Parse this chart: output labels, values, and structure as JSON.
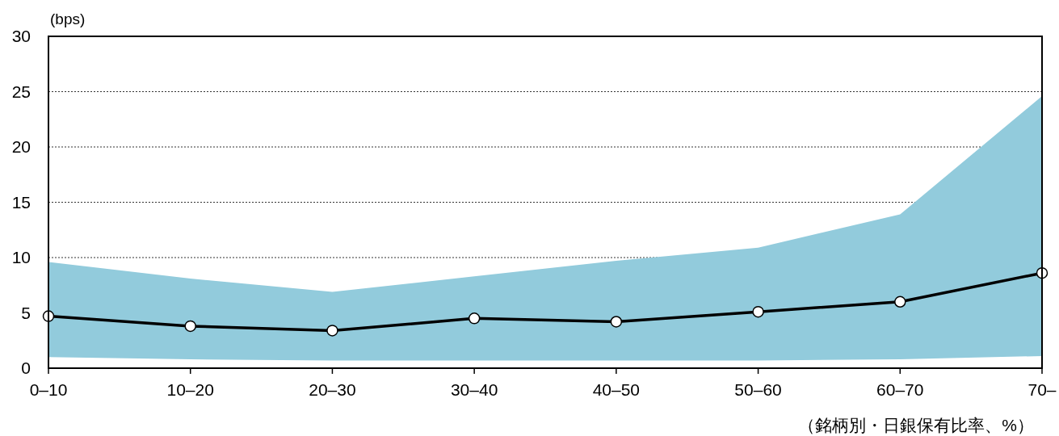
{
  "chart_data": {
    "type": "line",
    "ylabel": "(bps)",
    "xlabel": "（銘柄別・日銀保有比率、%）",
    "categories": [
      "0–10",
      "10–20",
      "20–30",
      "30–40",
      "40–50",
      "50–60",
      "60–70",
      "70–"
    ],
    "series": [
      {
        "color": "#000000",
        "values": [
          4.7,
          3.8,
          3.4,
          4.5,
          4.2,
          5.1,
          6.0,
          8.6
        ],
        "marker": "circle",
        "lower": [
          1.0,
          0.8,
          0.7,
          0.7,
          0.7,
          0.7,
          0.8,
          1.1
        ],
        "upper": [
          9.6,
          8.1,
          6.9,
          8.3,
          9.7,
          10.9,
          13.9,
          24.6
        ]
      }
    ],
    "ylim": [
      0,
      30
    ],
    "yticks": [
      0,
      5,
      10,
      15,
      20,
      25,
      30
    ],
    "grid": "y"
  }
}
